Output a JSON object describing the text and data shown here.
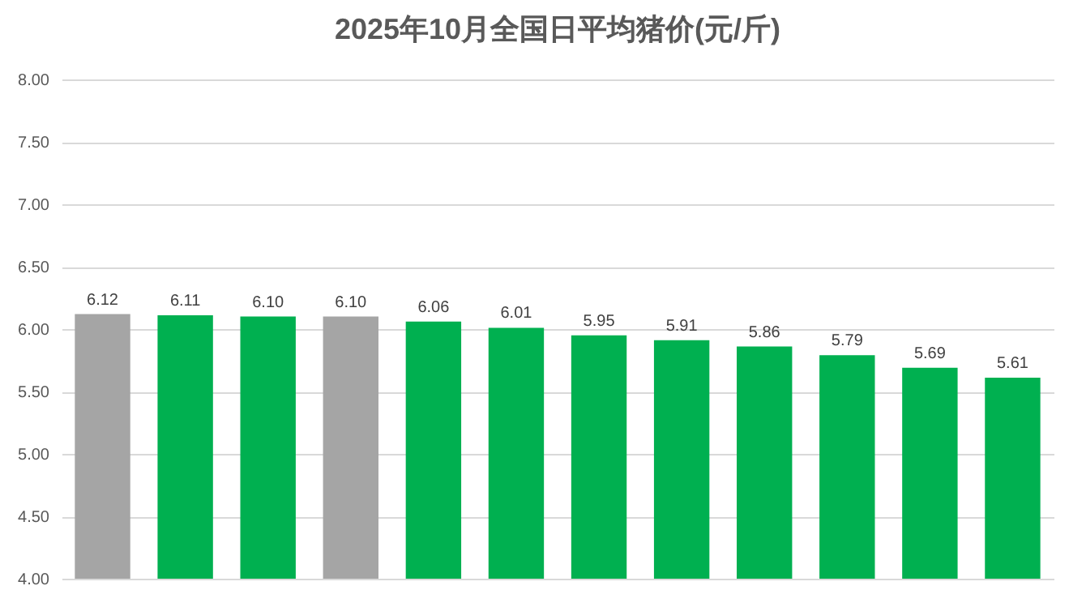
{
  "chart_data": {
    "type": "bar",
    "title": "2025年10月全国日平均猪价(元/斤)",
    "categories": [
      null,
      null,
      null,
      null,
      null,
      null,
      null,
      null,
      null,
      null,
      null,
      null
    ],
    "values": [
      6.12,
      6.11,
      6.1,
      6.1,
      6.06,
      6.01,
      5.95,
      5.91,
      5.86,
      5.79,
      5.69,
      5.61
    ],
    "colors": [
      "#a5a5a5",
      "#00b050",
      "#00b050",
      "#a5a5a5",
      "#00b050",
      "#00b050",
      "#00b050",
      "#00b050",
      "#00b050",
      "#00b050",
      "#00b050",
      "#00b050"
    ],
    "ylim": [
      4.0,
      8.0
    ],
    "yticks": [
      {
        "value": 4.0,
        "label": "4.00"
      },
      {
        "value": 4.5,
        "label": "4.50"
      },
      {
        "value": 5.0,
        "label": "5.00"
      },
      {
        "value": 5.5,
        "label": "5.50"
      },
      {
        "value": 6.0,
        "label": "6.00"
      },
      {
        "value": 6.5,
        "label": "6.50"
      },
      {
        "value": 7.0,
        "label": "7.00"
      },
      {
        "value": 7.5,
        "label": "7.50"
      },
      {
        "value": 8.0,
        "label": "8.00"
      }
    ],
    "value_labels": [
      "6.12",
      "6.11",
      "6.10",
      "6.10",
      "6.06",
      "6.01",
      "5.95",
      "5.91",
      "5.86",
      "5.79",
      "5.69",
      "5.61"
    ],
    "grid": "y",
    "tick_labels": "y"
  }
}
